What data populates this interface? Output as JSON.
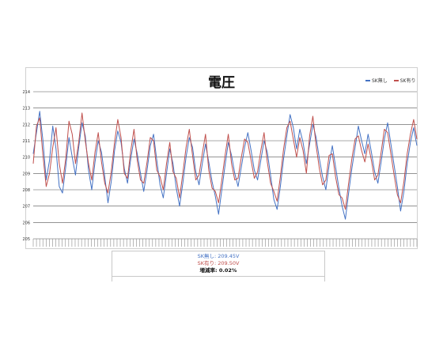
{
  "colors": {
    "series_blue": "#4472c4",
    "series_red": "#c0504d",
    "grid": "#555555"
  },
  "chart_data": {
    "type": "line",
    "title": "電圧",
    "xlabel": "",
    "ylabel": "",
    "ylim": [
      205,
      214
    ],
    "y_ticks": [
      "205",
      "206",
      "207",
      "208",
      "209",
      "210",
      "211",
      "212",
      "213",
      "214"
    ],
    "grid": true,
    "legend_position": "top-right",
    "series": [
      {
        "name": "SK無し",
        "color": "#4472c4",
        "values": [
          210.2,
          211.5,
          212.8,
          211.0,
          208.6,
          209.8,
          211.9,
          210.5,
          208.2,
          207.8,
          209.4,
          211.2,
          210.0,
          208.9,
          210.6,
          212.1,
          211.3,
          209.2,
          208.0,
          209.7,
          211.0,
          210.3,
          208.8,
          207.2,
          208.5,
          210.4,
          211.6,
          210.9,
          209.3,
          208.4,
          209.9,
          211.1,
          210.2,
          209.0,
          207.9,
          209.2,
          210.7,
          211.4,
          209.8,
          208.3,
          207.5,
          209.0,
          210.5,
          209.6,
          208.1,
          207.0,
          208.4,
          210.0,
          211.2,
          210.6,
          209.1,
          208.3,
          209.6,
          210.8,
          209.7,
          208.5,
          207.6,
          206.5,
          208.0,
          209.5,
          210.9,
          210.1,
          209.0,
          208.2,
          209.4,
          210.6,
          211.5,
          210.4,
          209.2,
          208.6,
          209.8,
          211.0,
          210.3,
          208.9,
          207.4,
          206.8,
          208.2,
          209.9,
          211.3,
          212.6,
          211.8,
          210.5,
          211.7,
          210.9,
          209.6,
          210.8,
          212.0,
          211.2,
          209.9,
          208.8,
          208.0,
          209.5,
          210.7,
          209.4,
          208.1,
          207.0,
          206.2,
          207.8,
          209.3,
          210.6,
          211.9,
          211.0,
          210.2,
          211.4,
          210.3,
          209.1,
          208.4,
          209.7,
          211.1,
          212.1,
          210.8,
          209.5,
          208.2,
          206.7,
          207.9,
          209.6,
          210.9,
          211.8,
          210.7
        ]
      },
      {
        "name": "SK有り",
        "color": "#c0504d",
        "values": [
          209.6,
          211.9,
          212.4,
          210.1,
          208.2,
          209.0,
          210.6,
          211.8,
          209.6,
          208.4,
          209.9,
          212.2,
          211.4,
          209.6,
          210.9,
          212.7,
          211.0,
          209.6,
          208.6,
          210.3,
          211.5,
          209.7,
          208.4,
          207.8,
          209.1,
          210.9,
          212.3,
          211.2,
          209.0,
          208.7,
          210.4,
          211.7,
          209.8,
          208.6,
          208.4,
          209.7,
          211.2,
          211.0,
          209.2,
          208.8,
          208.0,
          209.6,
          210.9,
          209.1,
          208.7,
          207.5,
          209.0,
          210.6,
          211.7,
          210.1,
          208.6,
          208.9,
          210.2,
          211.4,
          209.2,
          208.1,
          207.9,
          207.2,
          208.6,
          210.1,
          211.4,
          209.6,
          208.6,
          208.7,
          210.0,
          211.1,
          210.9,
          209.8,
          208.7,
          209.1,
          210.4,
          211.5,
          209.7,
          208.4,
          207.9,
          207.3,
          208.8,
          210.5,
          211.8,
          212.2,
          211.1,
          210.0,
          211.2,
          210.4,
          209.0,
          211.3,
          212.5,
          210.7,
          209.3,
          208.3,
          208.6,
          210.1,
          210.2,
          208.8,
          207.7,
          207.5,
          206.8,
          208.4,
          209.9,
          211.1,
          211.3,
          210.4,
          209.7,
          210.8,
          209.8,
          208.6,
          208.9,
          210.3,
          211.7,
          211.5,
          210.2,
          208.9,
          207.7,
          207.2,
          208.5,
          210.2,
          211.4,
          212.3,
          211.1
        ]
      }
    ]
  },
  "stats": {
    "line1": "SK無し: 209.45V",
    "line2": "SK有り: 209.50V",
    "line3": "増減率: 0.02%"
  }
}
